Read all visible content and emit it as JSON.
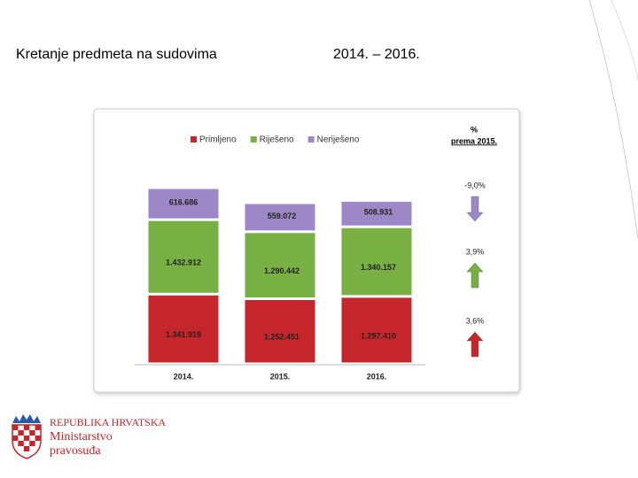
{
  "slide": {
    "title": "Kretanje predmeta na sudovima",
    "period": "2014. – 2016.",
    "logo": {
      "country": "REPUBLIKA HRVATSKA",
      "line1": "Ministarstvo",
      "line2": "pravosuđa"
    }
  },
  "chart_data": {
    "type": "stacked-bar",
    "categories": [
      "2014.",
      "2015.",
      "2016."
    ],
    "series": [
      {
        "name": "Primljeno",
        "color": "#c4262b",
        "values": [
          1341919,
          1252451,
          1297410
        ],
        "value_labels": [
          "1.341.919",
          "1.252.451",
          "1.297.410"
        ]
      },
      {
        "name": "Riješeno",
        "color": "#78b044",
        "values": [
          1432912,
          1290442,
          1340157
        ],
        "value_labels": [
          "1.432.912",
          "1.290.442",
          "1.340.157"
        ]
      },
      {
        "name": "Neriješeno",
        "color": "#9c88c6",
        "values": [
          616686,
          559072,
          508931
        ],
        "value_labels": [
          "616.686",
          "559.072",
          "508.931"
        ]
      }
    ],
    "legend": "top",
    "change_title": "%",
    "change_subtitle": "prema 2015.",
    "changes": [
      {
        "value": -9.0,
        "label": "-9,0%"
      },
      {
        "value": 3.9,
        "label": "3,9%"
      },
      {
        "value": 3.6,
        "label": "3,6%"
      }
    ]
  }
}
